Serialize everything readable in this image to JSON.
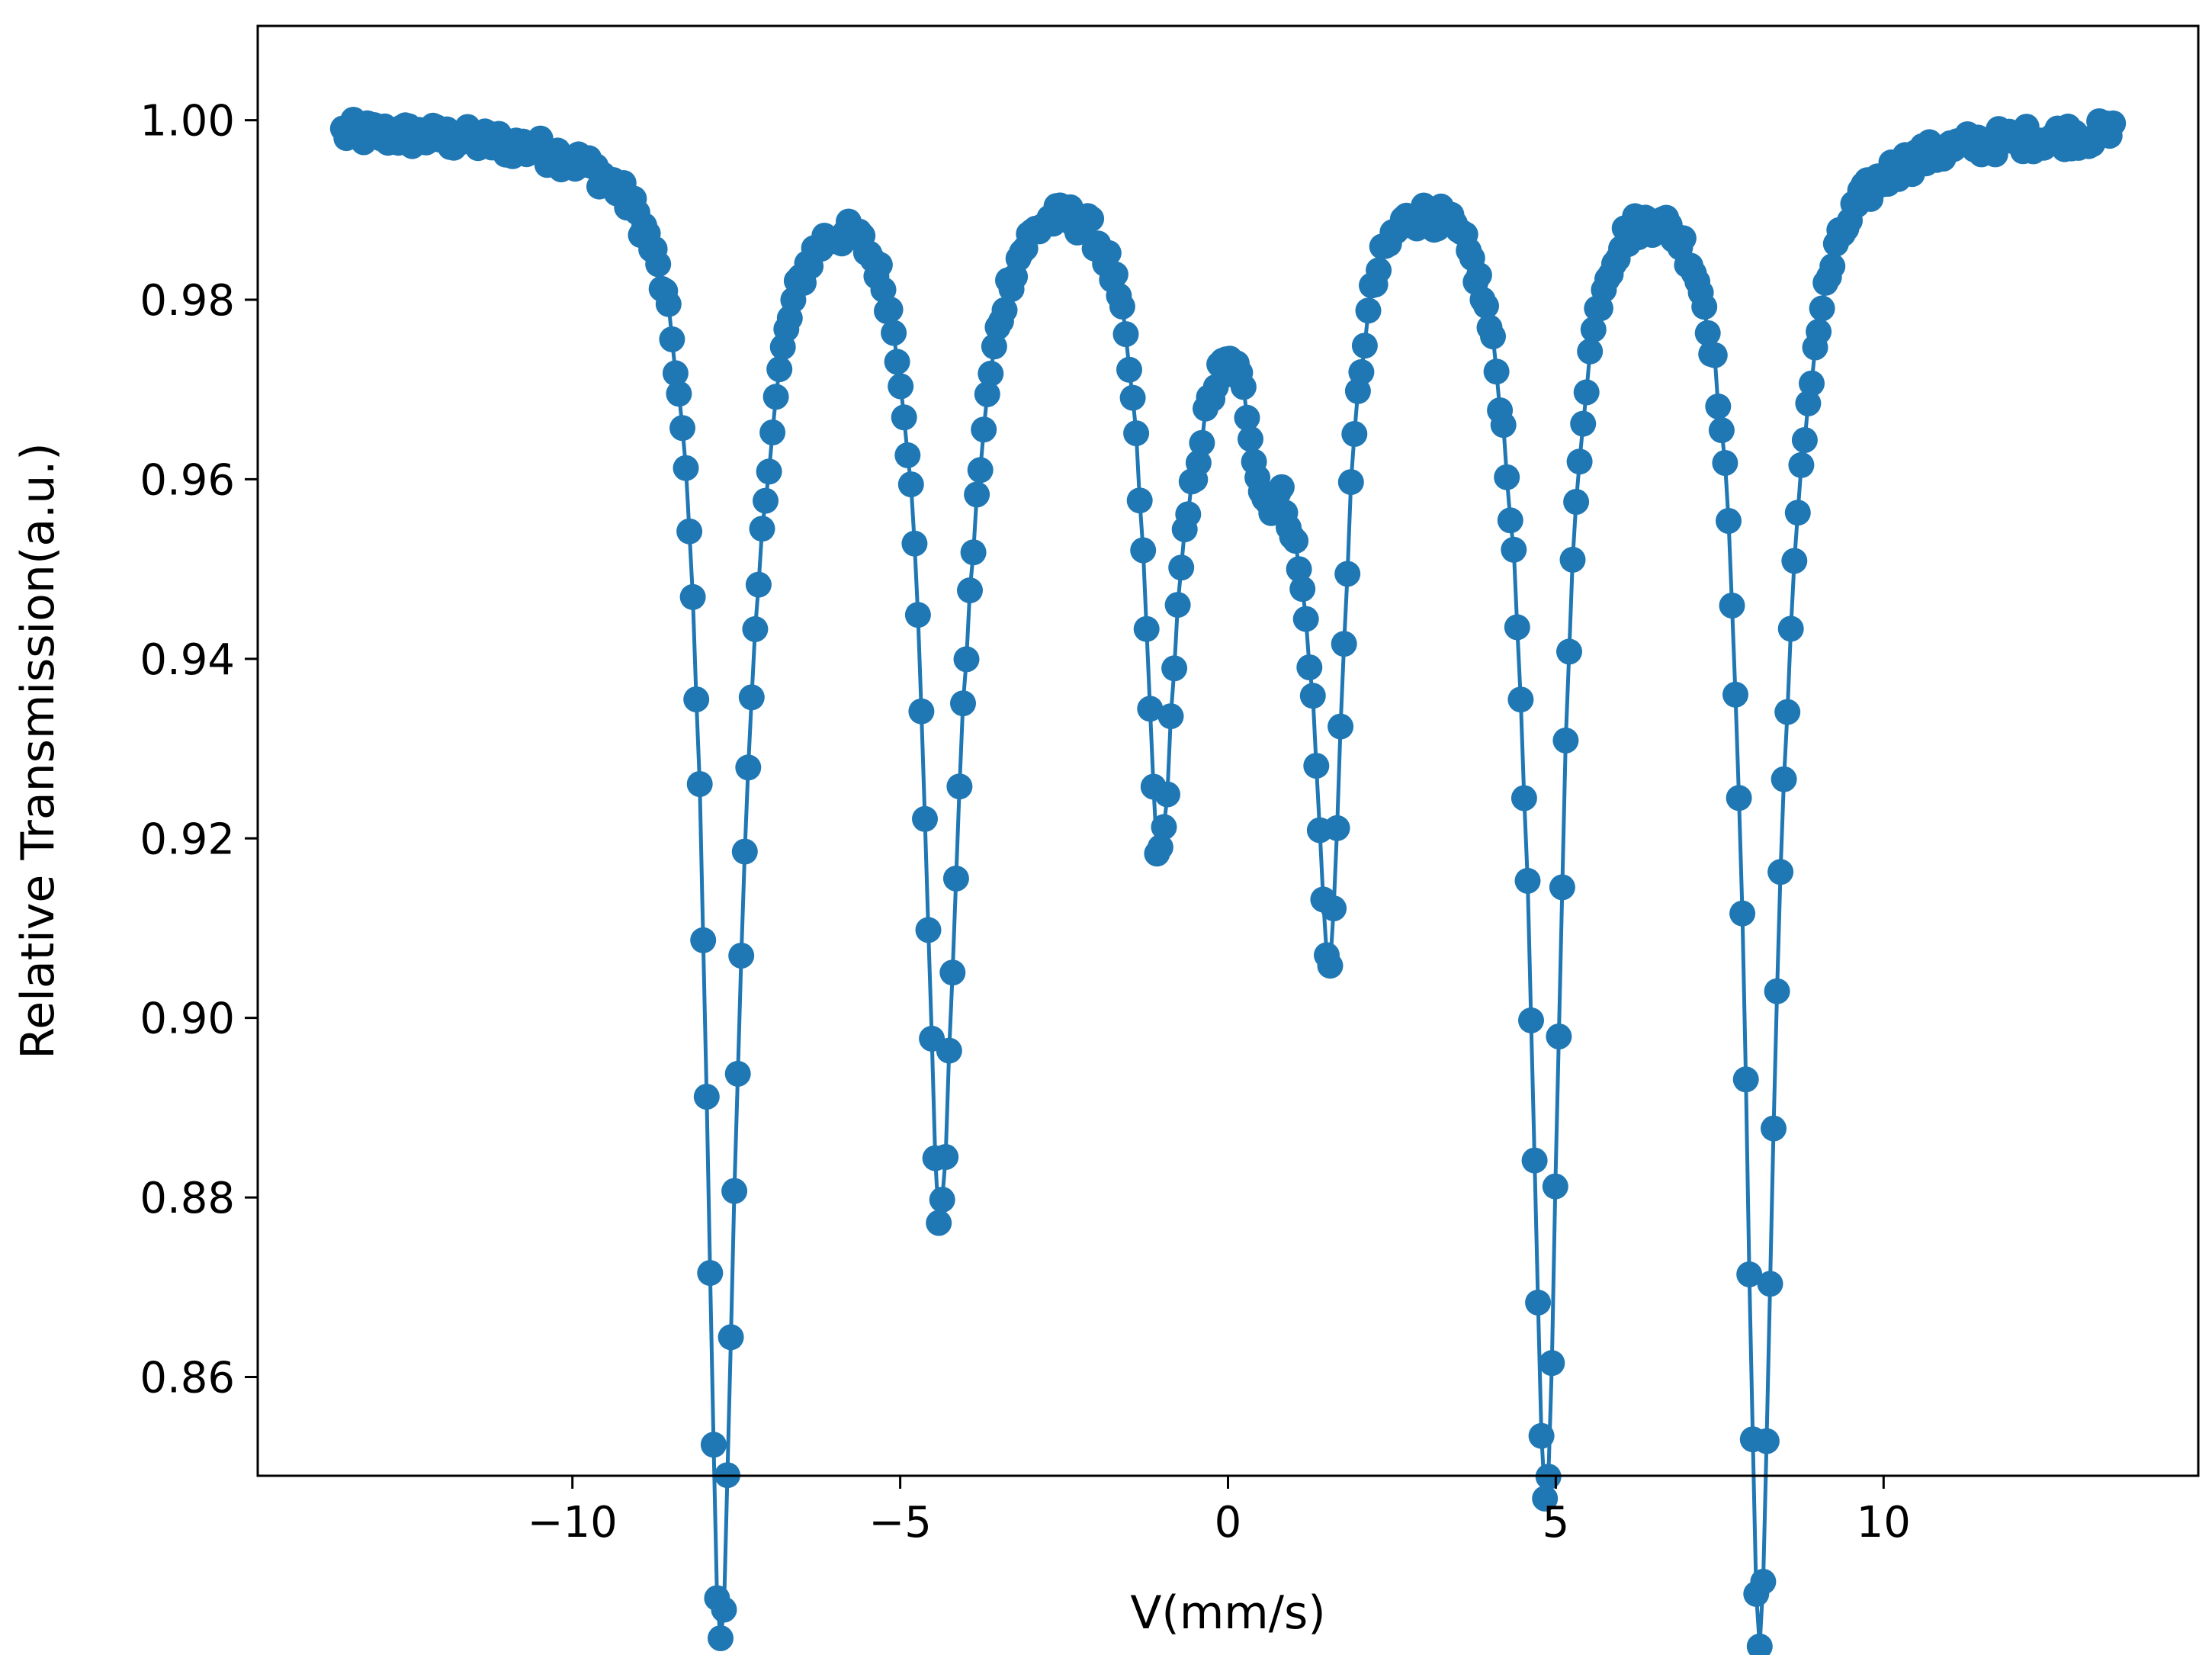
{
  "chart_data": {
    "type": "line",
    "title": "",
    "xlabel": "V(mm/s)",
    "ylabel": "Relative Transmission(a.u.)",
    "xlim": [
      -14.8,
      14.8
    ],
    "ylim": [
      0.849,
      1.0105
    ],
    "xticks": [
      -10,
      -5,
      0,
      5,
      10
    ],
    "xtick_labels": [
      "−10",
      "−5",
      "0",
      "5",
      "10"
    ],
    "yticks": [
      0.86,
      0.88,
      0.9,
      0.92,
      0.94,
      0.96,
      0.98,
      1.0
    ],
    "ytick_labels": [
      "0.86",
      "0.88",
      "0.90",
      "0.92",
      "0.94",
      "0.96",
      "0.98",
      "1.00"
    ],
    "grid": false,
    "legend": "none",
    "series_color": "#1f77b4",
    "markers": true,
    "x_range": [
      -13.5,
      13.5
    ],
    "baseline": 0.9995,
    "absorption_lines": [
      {
        "center": -7.75,
        "depth": 0.142,
        "width": 0.26
      },
      {
        "center": -7.45,
        "depth": 0.035,
        "width": 0.5
      },
      {
        "center": -4.4,
        "depth": 0.1,
        "width": 0.28
      },
      {
        "center": -4.1,
        "depth": 0.025,
        "width": 0.5
      },
      {
        "center": -1.05,
        "depth": 0.064,
        "width": 0.27
      },
      {
        "center": -0.6,
        "depth": 0.02,
        "width": 0.6
      },
      {
        "center": 0.55,
        "depth": 0.022,
        "width": 0.35
      },
      {
        "center": 1.1,
        "depth": 0.018,
        "width": 0.4
      },
      {
        "center": 1.55,
        "depth": 0.078,
        "width": 0.27
      },
      {
        "center": 4.85,
        "depth": 0.135,
        "width": 0.26
      },
      {
        "center": 4.6,
        "depth": 0.02,
        "width": 0.5
      },
      {
        "center": 8.1,
        "depth": 0.148,
        "width": 0.26
      },
      {
        "center": 8.4,
        "depth": 0.025,
        "width": 0.5
      }
    ]
  }
}
